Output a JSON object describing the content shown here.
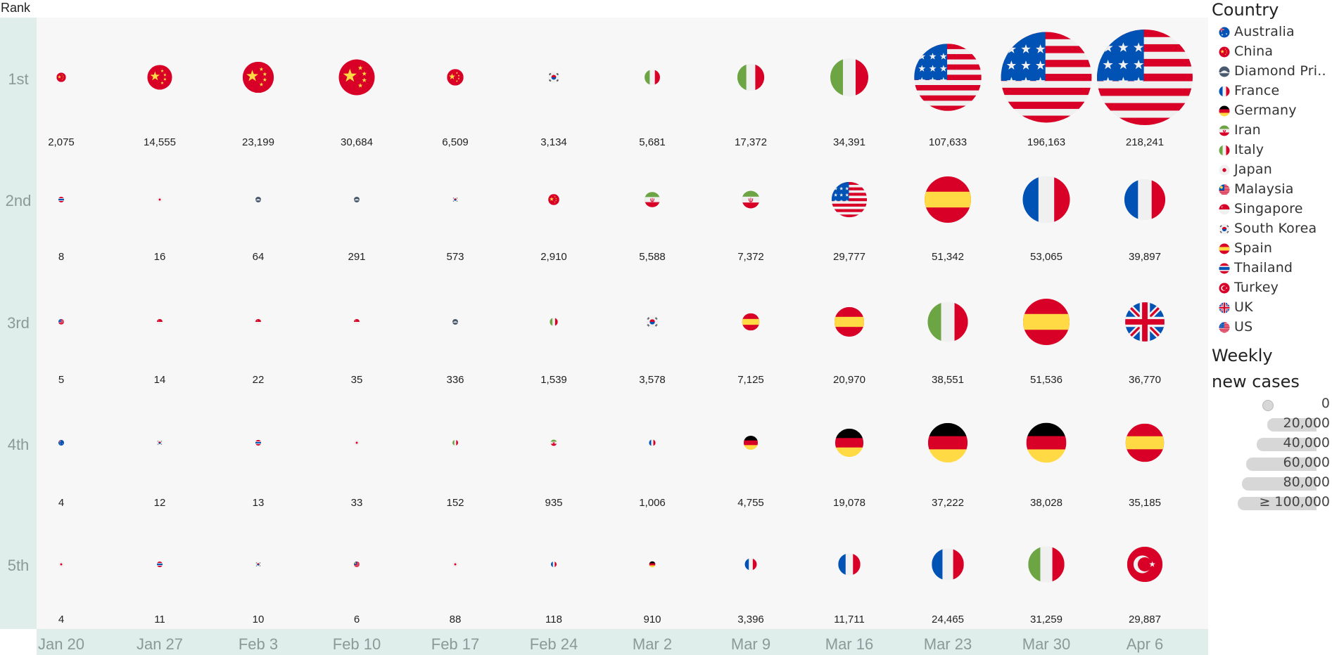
{
  "chart_data": {
    "type": "bubble-grid",
    "row_header": "Rank",
    "ranks": [
      "1st",
      "2nd",
      "3rd",
      "4th",
      "5th"
    ],
    "weeks": [
      "Jan 20",
      "Jan 27",
      "Feb 3",
      "Feb 10",
      "Feb 17",
      "Feb 24",
      "Mar 2",
      "Mar 9",
      "Mar 16",
      "Mar 23",
      "Mar 30",
      "Apr 6"
    ],
    "cells": [
      [
        {
          "country": "China",
          "value": 2075
        },
        {
          "country": "China",
          "value": 14555
        },
        {
          "country": "China",
          "value": 23199
        },
        {
          "country": "China",
          "value": 30684
        },
        {
          "country": "China",
          "value": 6509
        },
        {
          "country": "South Korea",
          "value": 3134
        },
        {
          "country": "Italy",
          "value": 5681
        },
        {
          "country": "Italy",
          "value": 17372
        },
        {
          "country": "Italy",
          "value": 34391
        },
        {
          "country": "US",
          "value": 107633
        },
        {
          "country": "US",
          "value": 196163
        },
        {
          "country": "US",
          "value": 218241
        }
      ],
      [
        {
          "country": "Thailand",
          "value": 8
        },
        {
          "country": "Japan",
          "value": 16
        },
        {
          "country": "Diamond Princess",
          "value": 64
        },
        {
          "country": "Diamond Princess",
          "value": 291
        },
        {
          "country": "South Korea",
          "value": 573
        },
        {
          "country": "China",
          "value": 2910
        },
        {
          "country": "Iran",
          "value": 5588
        },
        {
          "country": "Iran",
          "value": 7372
        },
        {
          "country": "US",
          "value": 29777
        },
        {
          "country": "Spain",
          "value": 51342
        },
        {
          "country": "France",
          "value": 53065
        },
        {
          "country": "France",
          "value": 39897
        }
      ],
      [
        {
          "country": "US",
          "value": 5
        },
        {
          "country": "Singapore",
          "value": 14
        },
        {
          "country": "Singapore",
          "value": 22
        },
        {
          "country": "Singapore",
          "value": 35
        },
        {
          "country": "Diamond Princess",
          "value": 336
        },
        {
          "country": "Italy",
          "value": 1539
        },
        {
          "country": "South Korea",
          "value": 3578
        },
        {
          "country": "Spain",
          "value": 7125
        },
        {
          "country": "Spain",
          "value": 20970
        },
        {
          "country": "Italy",
          "value": 38551
        },
        {
          "country": "Spain",
          "value": 51536
        },
        {
          "country": "UK",
          "value": 36770
        }
      ],
      [
        {
          "country": "Australia",
          "value": 4
        },
        {
          "country": "South Korea",
          "value": 12
        },
        {
          "country": "Thailand",
          "value": 13
        },
        {
          "country": "Japan",
          "value": 33
        },
        {
          "country": "Italy",
          "value": 152
        },
        {
          "country": "Iran",
          "value": 935
        },
        {
          "country": "France",
          "value": 1006
        },
        {
          "country": "Germany",
          "value": 4755
        },
        {
          "country": "Germany",
          "value": 19078
        },
        {
          "country": "Germany",
          "value": 37222
        },
        {
          "country": "Germany",
          "value": 38028
        },
        {
          "country": "Spain",
          "value": 35185
        }
      ],
      [
        {
          "country": "Japan",
          "value": 4
        },
        {
          "country": "Thailand",
          "value": 11
        },
        {
          "country": "South Korea",
          "value": 10
        },
        {
          "country": "Malaysia",
          "value": 6
        },
        {
          "country": "Japan",
          "value": 88
        },
        {
          "country": "France",
          "value": 118
        },
        {
          "country": "Germany",
          "value": 910
        },
        {
          "country": "France",
          "value": 3396
        },
        {
          "country": "France",
          "value": 11711
        },
        {
          "country": "France",
          "value": 24465
        },
        {
          "country": "Italy",
          "value": 31259
        },
        {
          "country": "Turkey",
          "value": 29887
        }
      ]
    ],
    "legend_country": {
      "title": "Country",
      "items": [
        {
          "key": "Australia",
          "label": "Australia"
        },
        {
          "key": "China",
          "label": "China"
        },
        {
          "key": "Diamond Princess",
          "label": "Diamond Pri.."
        },
        {
          "key": "France",
          "label": "France"
        },
        {
          "key": "Germany",
          "label": "Germany"
        },
        {
          "key": "Iran",
          "label": "Iran"
        },
        {
          "key": "Italy",
          "label": "Italy"
        },
        {
          "key": "Japan",
          "label": "Japan"
        },
        {
          "key": "Malaysia",
          "label": "Malaysia"
        },
        {
          "key": "Singapore",
          "label": "Singapore"
        },
        {
          "key": "South Korea",
          "label": "South Korea"
        },
        {
          "key": "Spain",
          "label": "Spain"
        },
        {
          "key": "Thailand",
          "label": "Thailand"
        },
        {
          "key": "Turkey",
          "label": "Turkey"
        },
        {
          "key": "UK",
          "label": "UK"
        },
        {
          "key": "US",
          "label": "US"
        }
      ]
    },
    "legend_size": {
      "title_line1": "Weekly",
      "title_line2": "new cases",
      "items": [
        {
          "value": 0,
          "label": "0"
        },
        {
          "value": 20000,
          "label": "20,000"
        },
        {
          "value": 40000,
          "label": "40,000"
        },
        {
          "value": 60000,
          "label": "60,000"
        },
        {
          "value": 80000,
          "label": "80,000"
        },
        {
          "value": 100000,
          "label": "≥ 100,000"
        }
      ]
    },
    "colors": {
      "rank_band": "#dfeeea",
      "plot_bg": "#f7f7f7",
      "red": "#d80027",
      "gold": "#ffda44",
      "blue": "#0052b4",
      "navy": "#25326b",
      "green": "#6da544",
      "white": "#f0f0f0",
      "black": "#000000",
      "grey": "#4a5a6e",
      "size_bar": "#d7d7d7"
    }
  }
}
